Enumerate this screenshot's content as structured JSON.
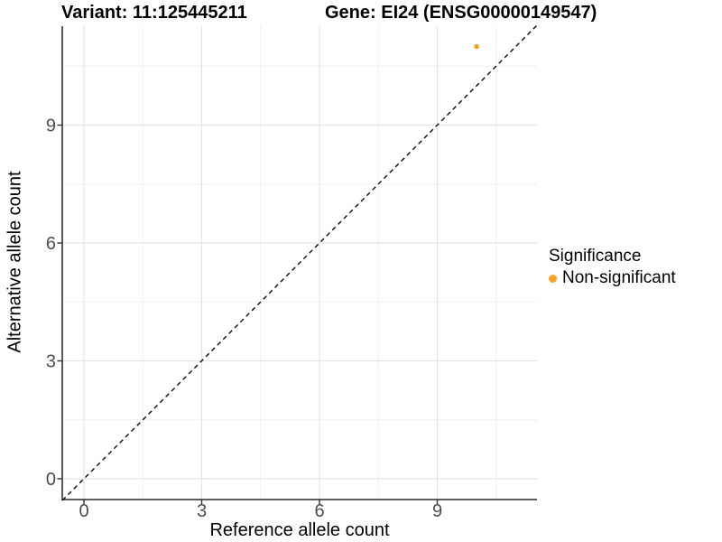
{
  "chart_data": {
    "type": "scatter",
    "title_left": "Variant: 11:125445211",
    "title_right": "Gene: EI24 (ENSG00000149547)",
    "xlabel": "Reference allele count",
    "ylabel": "Alternative allele count",
    "x_ticks": [
      0,
      3,
      6,
      9
    ],
    "y_ticks": [
      0,
      3,
      6,
      9
    ],
    "x_minor_gridlines": [
      1.5,
      4.5,
      7.5,
      10.5
    ],
    "y_minor_gridlines": [
      1.5,
      4.5,
      7.5,
      10.5
    ],
    "xlim": [
      -0.55,
      11.55
    ],
    "ylim": [
      -0.55,
      11.55
    ],
    "grid": "major and minor, light gray on white panel",
    "points": [
      {
        "x": 10,
        "y": 11,
        "series": "Non-significant"
      }
    ],
    "reference_line": {
      "type": "abline",
      "slope": 1,
      "intercept": 0,
      "style": "dashed"
    },
    "legend": {
      "title": "Significance",
      "position": "right",
      "entries": [
        {
          "label": "Non-significant",
          "color": "#F9A029"
        }
      ]
    },
    "colors": {
      "point": "#F9A029",
      "grid_major": "#E4E4E4",
      "grid_minor": "#F0F0F0",
      "axis_line": "#474747",
      "tick_mark": "#333333",
      "tick_label": "#4D4D4D",
      "dashed_line": "#1A1A1A",
      "background": "#FFFFFF"
    }
  }
}
